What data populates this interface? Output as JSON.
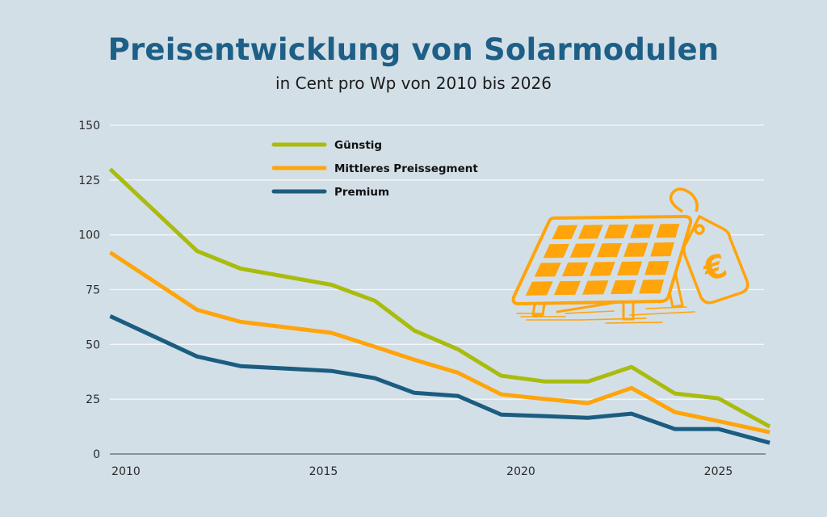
{
  "chart_data": {
    "type": "line",
    "title": "Preisentwicklung von Solarmodulen",
    "subtitle": "in Cent pro Wp von 2010 bis 2026",
    "xlabel": "",
    "ylabel": "",
    "xlim": [
      2009.6,
      2026.3
    ],
    "ylim": [
      0,
      150
    ],
    "yticks": [
      0,
      25,
      50,
      75,
      100,
      125,
      150
    ],
    "xticks": [
      2010,
      2015,
      2020,
      2025
    ],
    "grid": true,
    "legend_position": "top-center",
    "x": [
      2009.6,
      2011.8,
      2012.9,
      2015.2,
      2016.3,
      2017.3,
      2018.4,
      2019.5,
      2020.6,
      2021.7,
      2022.8,
      2023.9,
      2025.0,
      2026.3
    ],
    "series": [
      {
        "name": "Günstig",
        "color": "#a9bc0e",
        "values": [
          130,
          92.6,
          84.6,
          77.2,
          69.9,
          56.3,
          47.8,
          35.7,
          33.1,
          33.1,
          39.7,
          27.6,
          25.4,
          12.5
        ]
      },
      {
        "name": "Mittleres Preissegment",
        "color": "#ffa40a",
        "values": [
          92,
          65.8,
          60.3,
          55.3,
          48.9,
          43,
          37.1,
          27.2,
          25.1,
          23.2,
          30.1,
          19.1,
          15.0,
          9.9
        ]
      },
      {
        "name": "Premium",
        "color": "#1b5d80",
        "values": [
          62.9,
          44.5,
          40.1,
          37.9,
          34.6,
          27.9,
          26.5,
          18.0,
          17.3,
          16.5,
          18.4,
          11.4,
          11.4,
          5.1
        ]
      }
    ]
  },
  "illustration": {
    "icon": "solar-panel-price-tag",
    "symbol": "€",
    "color": "#ffa40a"
  }
}
